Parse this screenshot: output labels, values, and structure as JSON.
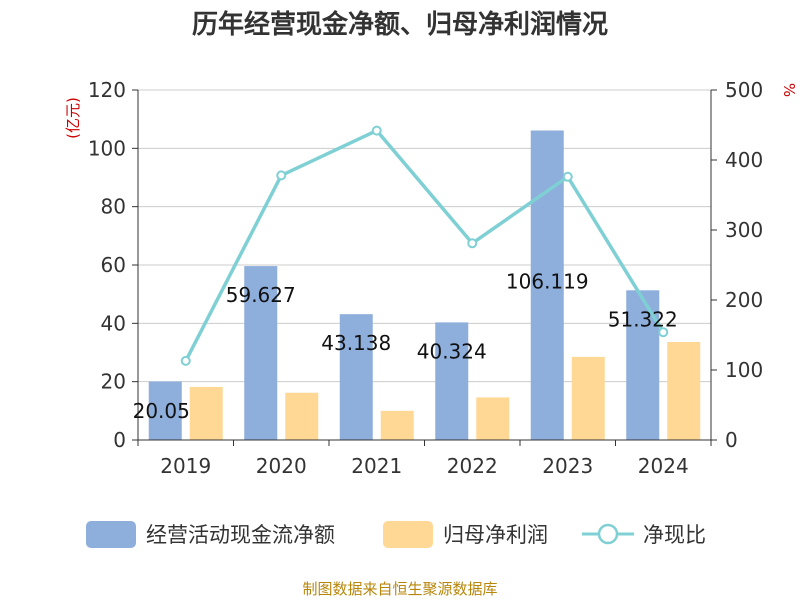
{
  "chart_data": {
    "type": "bar",
    "title": "历年经营现金净额、归母净利润情况",
    "categories": [
      "2019",
      "2020",
      "2021",
      "2022",
      "2023",
      "2024"
    ],
    "series": [
      {
        "name": "经营活动现金流净额",
        "type": "bar",
        "axis": "left",
        "color": "#8eaedc",
        "values": [
          20.05,
          59.627,
          43.138,
          40.324,
          106.119,
          51.322
        ],
        "labels": [
          "20.05",
          "59.627",
          "43.138",
          "40.324",
          "106.119",
          "51.322"
        ]
      },
      {
        "name": "归母净利润",
        "type": "bar",
        "axis": "left",
        "color": "#ffd896",
        "values": [
          18.2,
          16.2,
          10.0,
          14.6,
          28.5,
          33.6
        ]
      },
      {
        "name": "净现比",
        "type": "line",
        "axis": "right",
        "color": "#7fd0d4",
        "values": [
          113,
          378,
          442,
          281,
          376,
          154
        ]
      }
    ],
    "y_left": {
      "unit": "(亿元)",
      "min": 0,
      "max": 120,
      "ticks": [
        0,
        20,
        40,
        60,
        80,
        100,
        120
      ]
    },
    "y_right": {
      "unit": "%",
      "min": 0,
      "max": 500,
      "ticks": [
        0,
        100,
        200,
        300,
        400,
        500
      ]
    },
    "grid": true,
    "legend_position": "bottom"
  },
  "source": "制图数据来自恒生聚源数据库"
}
